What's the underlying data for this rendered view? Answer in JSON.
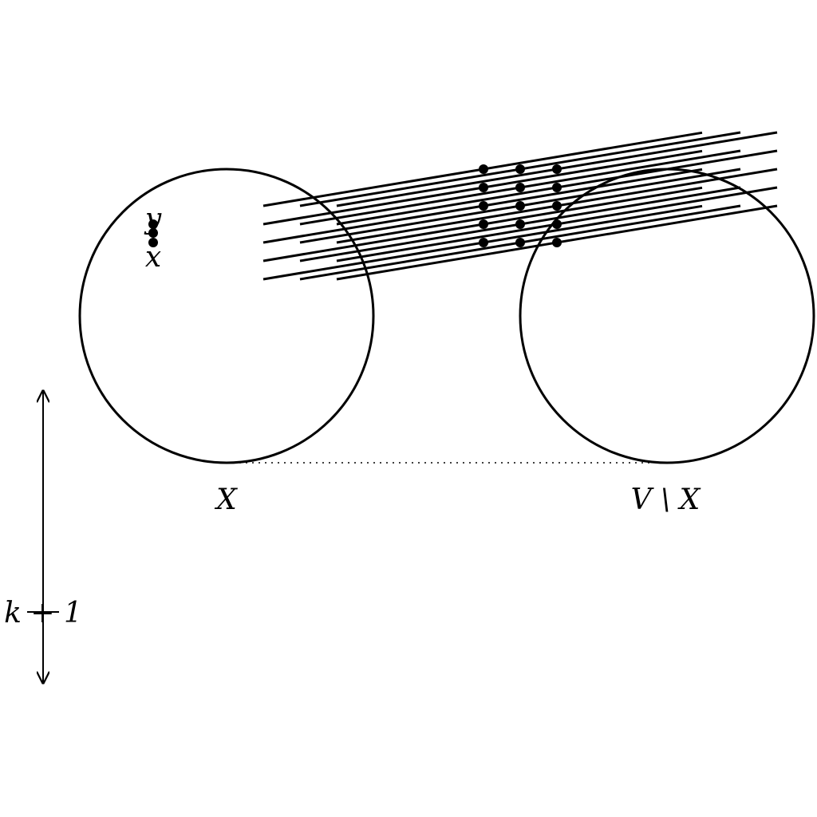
{
  "labels": {
    "set_left": "X",
    "set_right": "V \\ X",
    "vertex_top": "y",
    "vertex_bottom": "x",
    "height": "k + 1"
  },
  "colors": {
    "stroke": "#000000",
    "background": "#ffffff"
  },
  "structure": {
    "line_groups": 3,
    "lines_per_group": 5,
    "dot_columns": 3,
    "dots_per_column": 5,
    "vertex_dots": 3
  }
}
